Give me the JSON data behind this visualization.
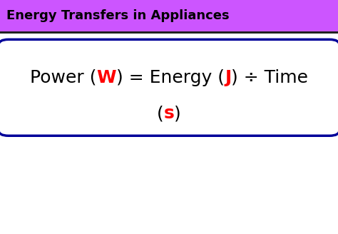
{
  "title": "Energy Transfers in Appliances",
  "title_bg_color": "#CC55FF",
  "title_text_color": "#000000",
  "body_bg_color": "#FFFFFF",
  "box_border_color": "#000099",
  "formula_line1_parts": [
    {
      "text": "Power (",
      "color": "#000000",
      "bold": false
    },
    {
      "text": "W",
      "color": "#FF0000",
      "bold": true
    },
    {
      "text": ") = Energy (",
      "color": "#000000",
      "bold": false
    },
    {
      "text": "J",
      "color": "#FF0000",
      "bold": true
    },
    {
      "text": ") ÷ Time",
      "color": "#000000",
      "bold": false
    }
  ],
  "formula_line2_parts": [
    {
      "text": "(",
      "color": "#000000",
      "bold": false
    },
    {
      "text": "s",
      "color": "#FF0000",
      "bold": true
    },
    {
      "text": ")",
      "color": "#000000",
      "bold": false
    }
  ],
  "font_family": "DejaVu Sans",
  "title_fontsize": 13,
  "formula_fontsize": 18
}
